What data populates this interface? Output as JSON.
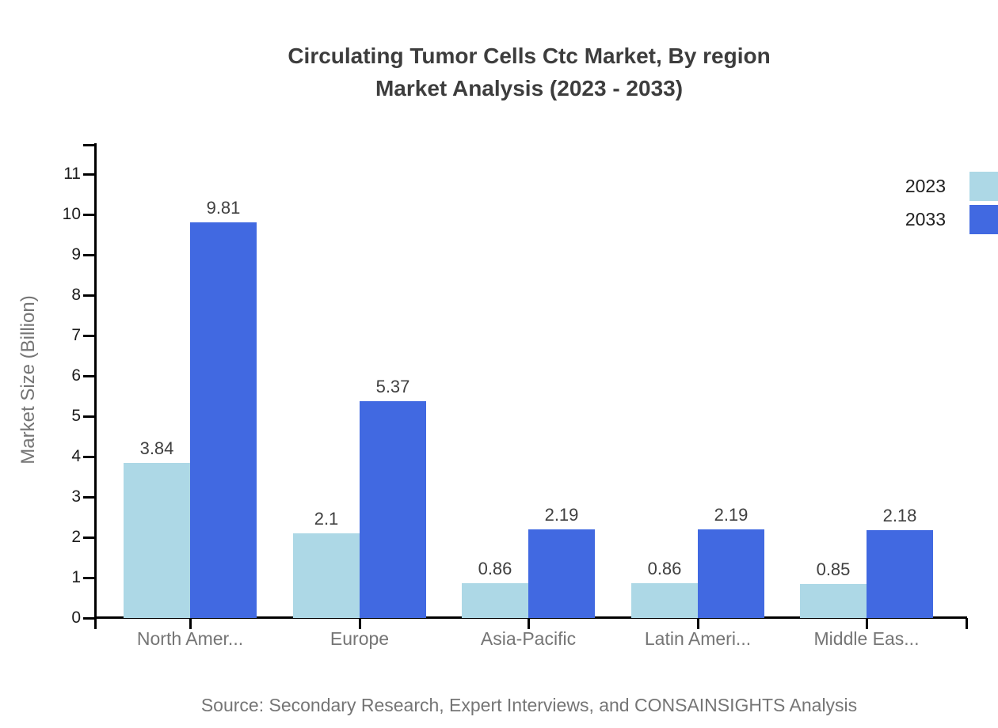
{
  "title": {
    "line1": "Circulating Tumor Cells Ctc Market, By region",
    "line2": "Market Analysis (2023 - 2033)"
  },
  "source": "Source: Secondary Research, Expert Interviews, and CONSAINSIGHTS Analysis",
  "legend": {
    "items": [
      {
        "label": "2023",
        "color": "#add8e6"
      },
      {
        "label": "2033",
        "color": "#4169e1"
      }
    ]
  },
  "colors": {
    "series_2023": "#add8e6",
    "series_2033": "#4169e1",
    "axis": "#000000",
    "title_text": "#3d3d3d",
    "muted_text": "#757575",
    "tick_text": "#1c1c1c"
  },
  "chart_data": {
    "type": "bar",
    "title": "Circulating Tumor Cells Ctc Market, By region Market Analysis (2023 - 2033)",
    "categories": [
      "North Amer...",
      "Europe",
      "Asia-Pacific",
      "Latin Ameri...",
      "Middle Eas..."
    ],
    "series": [
      {
        "name": "2023",
        "color": "#add8e6",
        "values": [
          3.84,
          2.1,
          0.86,
          0.86,
          0.85
        ],
        "labels": [
          "3.84",
          "2.1",
          "0.86",
          "0.86",
          "0.85"
        ]
      },
      {
        "name": "2033",
        "color": "#4169e1",
        "values": [
          9.81,
          5.37,
          2.19,
          2.19,
          2.18
        ],
        "labels": [
          "9.81",
          "5.37",
          "2.19",
          "2.19",
          "2.18"
        ]
      }
    ],
    "xlabel": "",
    "ylabel": "Market Size (Billion)",
    "ylim": [
      0,
      11
    ],
    "yticks": [
      0,
      1,
      2,
      3,
      4,
      5,
      6,
      7,
      8,
      9,
      10,
      11
    ],
    "grid": false,
    "legend_position": "top-right"
  }
}
